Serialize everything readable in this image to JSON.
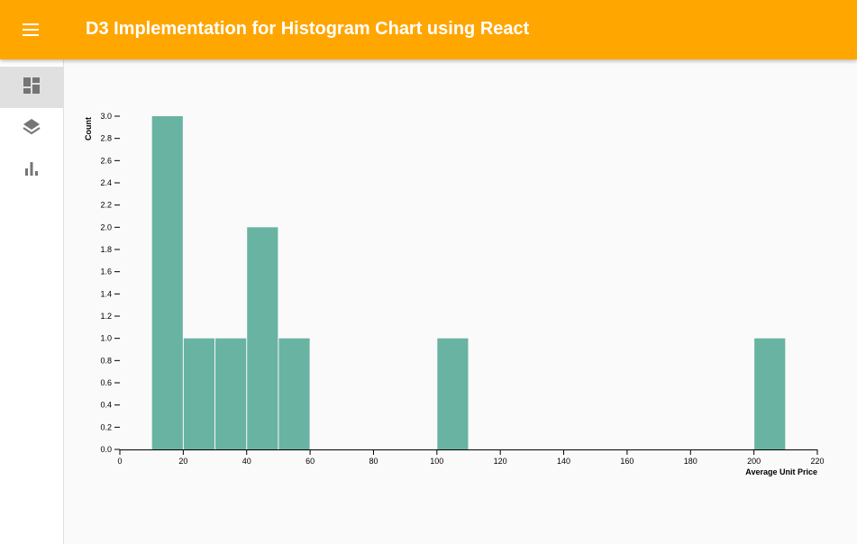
{
  "app": {
    "title": "D3 Implementation for Histogram Chart using React"
  },
  "sidebar": {
    "items": [
      {
        "icon": "dashboard-icon",
        "active": true
      },
      {
        "icon": "layers-icon",
        "active": false
      },
      {
        "icon": "bar-chart-icon",
        "active": false
      }
    ]
  },
  "colors": {
    "appbar": "#ffa600",
    "bar": "#69b3a2",
    "icon": "#757575"
  },
  "chart_data": {
    "type": "bar",
    "title": "",
    "xlabel": "Average Unit Price",
    "ylabel": "Count",
    "xlim": [
      0,
      220
    ],
    "ylim": [
      0,
      3.0
    ],
    "xticks": [
      0,
      20,
      40,
      60,
      80,
      100,
      120,
      140,
      160,
      180,
      200,
      220
    ],
    "yticks": [
      "0.0",
      "0.2",
      "0.4",
      "0.6",
      "0.8",
      "1.0",
      "1.2",
      "1.4",
      "1.6",
      "1.8",
      "2.0",
      "2.2",
      "2.4",
      "2.6",
      "2.8",
      "3.0"
    ],
    "grid": false,
    "bins": [
      {
        "x0": 10,
        "x1": 20,
        "count": 3
      },
      {
        "x0": 20,
        "x1": 30,
        "count": 1
      },
      {
        "x0": 30,
        "x1": 40,
        "count": 1
      },
      {
        "x0": 40,
        "x1": 50,
        "count": 2
      },
      {
        "x0": 50,
        "x1": 60,
        "count": 1
      },
      {
        "x0": 100,
        "x1": 110,
        "count": 1
      },
      {
        "x0": 200,
        "x1": 210,
        "count": 1
      }
    ]
  }
}
